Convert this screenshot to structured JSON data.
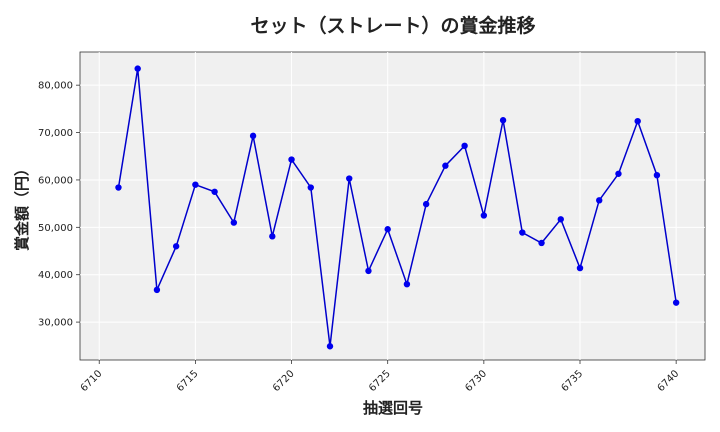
{
  "chart_data": {
    "type": "line",
    "title": "セット（ストレート）の賞金推移",
    "xlabel": "抽選回号",
    "ylabel": "賞金額（円）",
    "xlim": [
      6709.0,
      6741.5
    ],
    "ylim": [
      22000,
      87000
    ],
    "xticks": [
      6710,
      6715,
      6720,
      6725,
      6730,
      6735,
      6740
    ],
    "xtick_labels": [
      "6710",
      "6715",
      "6720",
      "6725",
      "6730",
      "6735",
      "6740"
    ],
    "yticks": [
      30000,
      40000,
      50000,
      60000,
      70000,
      80000
    ],
    "ytick_labels": [
      "30,000",
      "40,000",
      "50,000",
      "60,000",
      "70,000",
      "80,000"
    ],
    "grid": true,
    "colors": {
      "line": "#0000cc",
      "marker": "#0000ee",
      "plot_bg": "#f0f0f0",
      "grid": "#ffffff"
    },
    "series": [
      {
        "x": [
          6711,
          6712,
          6713,
          6714,
          6715,
          6716,
          6717,
          6718,
          6719,
          6720,
          6721,
          6722,
          6723,
          6724,
          6725,
          6726,
          6727,
          6728,
          6729,
          6730,
          6731,
          6732,
          6733,
          6734,
          6735,
          6736,
          6737,
          6738,
          6739,
          6740
        ],
        "values": [
          58400,
          83500,
          36800,
          46000,
          59000,
          57500,
          51000,
          69300,
          48100,
          64300,
          58400,
          24900,
          60300,
          40800,
          49600,
          38000,
          54900,
          63000,
          67200,
          52500,
          72600,
          48900,
          46700,
          51700,
          41400,
          55700,
          61300,
          72400,
          61000,
          34100
        ]
      }
    ]
  }
}
